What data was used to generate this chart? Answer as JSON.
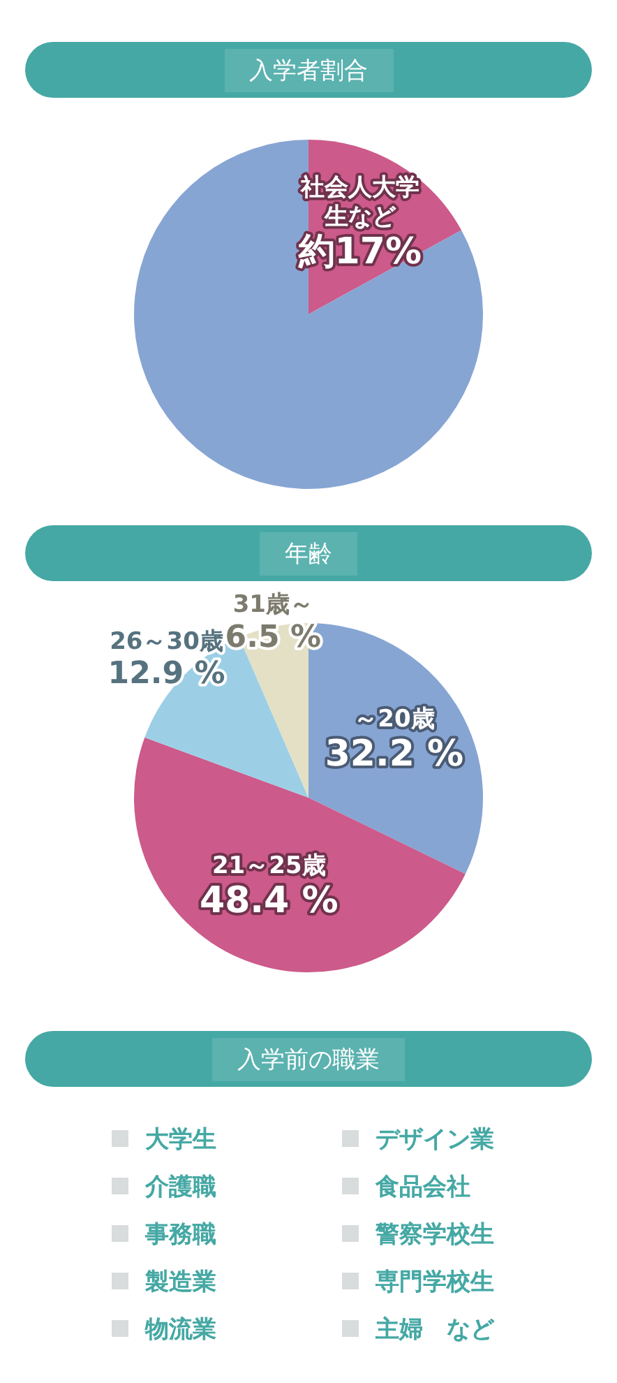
{
  "chart_data": [
    {
      "type": "pie",
      "title": "入学者割合",
      "categories": [
        "社会人大学生など",
        null
      ],
      "values": [
        17,
        83
      ],
      "colors": [
        "#cc5a8a",
        "#87a5d3"
      ],
      "value_labels": [
        "約17%",
        null
      ],
      "legend": false
    },
    {
      "type": "pie",
      "title": "年齢",
      "categories": [
        "～20歳",
        "21～25歳",
        "26～30歳",
        "31歳～"
      ],
      "values": [
        32.2,
        48.4,
        12.9,
        6.5
      ],
      "colors": [
        "#87a5d3",
        "#cc5a8a",
        "#9ccfe6",
        "#e3e0c6"
      ],
      "value_labels": [
        "32.2 %",
        "48.4 %",
        "12.9 %",
        "6.5 %"
      ],
      "legend": false
    },
    {
      "type": "other",
      "title": "入学前の職業",
      "annotations": [
        "大学生",
        "デザイン業",
        "介護職",
        "食品会社",
        "事務職",
        "警察学校生",
        "製造業",
        "専門学校生",
        "物流業",
        "主婦　など"
      ]
    }
  ]
}
